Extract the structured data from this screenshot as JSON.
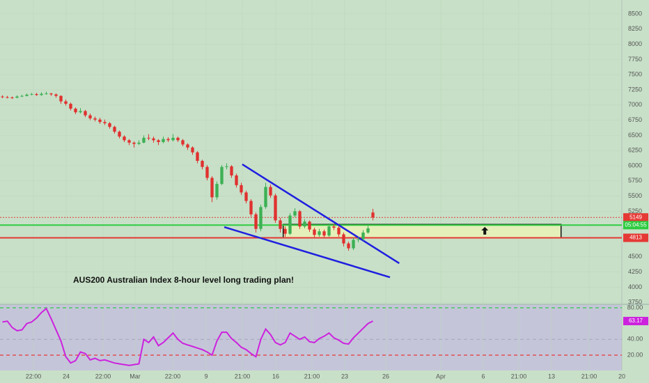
{
  "chart_data": [
    {
      "type": "candlestick",
      "annotation": "AUS200 Australian Index 8-hour level long trading plan!",
      "up_color": "#3cb054",
      "down_color": "#e0312f",
      "xlim": [
        -0.5,
        127.07
      ],
      "xticks": [
        {
          "value": 6.36,
          "label": "22:00"
        },
        {
          "value": 13.07,
          "label": "24"
        },
        {
          "value": 20.64,
          "label": "22:00"
        },
        {
          "value": 27.21,
          "label": "Mar"
        },
        {
          "value": 34.93,
          "label": "22:00"
        },
        {
          "value": 41.79,
          "label": "9"
        },
        {
          "value": 49.21,
          "label": "21:00"
        },
        {
          "value": 56.07,
          "label": "16"
        },
        {
          "value": 63.5,
          "label": "21:00"
        },
        {
          "value": 70.21,
          "label": "23"
        },
        {
          "value": 78.64,
          "label": "26"
        },
        {
          "value": 89.93,
          "label": "Apr"
        },
        {
          "value": 98.64,
          "label": "6"
        },
        {
          "value": 105.93,
          "label": "21:00"
        },
        {
          "value": 112.64,
          "label": "13"
        },
        {
          "value": 120.36,
          "label": "21:00"
        },
        {
          "value": 127.07,
          "label": "20"
        }
      ],
      "ylim": [
        3718,
        8729
      ],
      "yticks": [
        8500,
        8250,
        8000,
        7750,
        7500,
        7250,
        7000,
        6750,
        6500,
        6250,
        6000,
        5750,
        5500,
        5250,
        4500,
        4250,
        4000,
        3750
      ],
      "candles": [
        [
          7140,
          7160,
          7110,
          7130
        ],
        [
          7130,
          7150,
          7110,
          7125
        ],
        [
          7125,
          7140,
          7100,
          7120
        ],
        [
          7120,
          7160,
          7110,
          7140
        ],
        [
          7140,
          7170,
          7130,
          7150
        ],
        [
          7150,
          7190,
          7140,
          7170
        ],
        [
          7170,
          7200,
          7160,
          7180
        ],
        [
          7180,
          7200,
          7150,
          7165
        ],
        [
          7165,
          7210,
          7150,
          7185
        ],
        [
          7185,
          7220,
          7170,
          7190
        ],
        [
          7190,
          7200,
          7150,
          7175
        ],
        [
          7175,
          7190,
          7120,
          7150
        ],
        [
          7150,
          7160,
          7020,
          7060
        ],
        [
          7060,
          7090,
          6990,
          7020
        ],
        [
          7020,
          7040,
          6910,
          6940
        ],
        [
          6940,
          6960,
          6850,
          6880
        ],
        [
          6880,
          6950,
          6860,
          6900
        ],
        [
          6900,
          6920,
          6800,
          6830
        ],
        [
          6830,
          6860,
          6750,
          6780
        ],
        [
          6780,
          6810,
          6730,
          6760
        ],
        [
          6760,
          6790,
          6690,
          6720
        ],
        [
          6720,
          6760,
          6670,
          6700
        ],
        [
          6700,
          6720,
          6610,
          6640
        ],
        [
          6640,
          6660,
          6530,
          6560
        ],
        [
          6560,
          6580,
          6450,
          6480
        ],
        [
          6480,
          6500,
          6390,
          6420
        ],
        [
          6420,
          6440,
          6340,
          6380
        ],
        [
          6380,
          6400,
          6300,
          6360
        ],
        [
          6360,
          6420,
          6340,
          6380
        ],
        [
          6380,
          6500,
          6370,
          6460
        ],
        [
          6460,
          6520,
          6420,
          6450
        ],
        [
          6450,
          6480,
          6380,
          6420
        ],
        [
          6420,
          6440,
          6340,
          6390
        ],
        [
          6390,
          6480,
          6370,
          6440
        ],
        [
          6440,
          6470,
          6390,
          6420
        ],
        [
          6420,
          6520,
          6400,
          6460
        ],
        [
          6460,
          6480,
          6390,
          6420
        ],
        [
          6420,
          6440,
          6320,
          6350
        ],
        [
          6350,
          6370,
          6260,
          6300
        ],
        [
          6300,
          6320,
          6180,
          6220
        ],
        [
          6220,
          6240,
          6040,
          6080
        ],
        [
          6080,
          6100,
          5940,
          5980
        ],
        [
          5980,
          6010,
          5760,
          5800
        ],
        [
          5800,
          5830,
          5400,
          5480
        ],
        [
          5480,
          5740,
          5440,
          5700
        ],
        [
          5700,
          6010,
          5680,
          5980
        ],
        [
          5980,
          6040,
          5940,
          5990
        ],
        [
          5990,
          6010,
          5800,
          5840
        ],
        [
          5840,
          5870,
          5640,
          5680
        ],
        [
          5680,
          5720,
          5520,
          5560
        ],
        [
          5560,
          5590,
          5380,
          5420
        ],
        [
          5420,
          5450,
          5160,
          5200
        ],
        [
          5200,
          5230,
          4900,
          4960
        ],
        [
          4960,
          5360,
          4920,
          5320
        ],
        [
          5320,
          5720,
          5290,
          5650
        ],
        [
          5650,
          5690,
          5470,
          5510
        ],
        [
          5510,
          5540,
          5060,
          5100
        ],
        [
          5100,
          5140,
          4900,
          4960
        ],
        [
          4960,
          5000,
          4830,
          4880
        ],
        [
          4880,
          5220,
          4860,
          5180
        ],
        [
          5180,
          5300,
          5150,
          5250
        ],
        [
          5250,
          5270,
          4960,
          5000
        ],
        [
          5000,
          5120,
          4970,
          5080
        ],
        [
          5080,
          5100,
          4910,
          4950
        ],
        [
          4950,
          4980,
          4820,
          4860
        ],
        [
          4860,
          4960,
          4830,
          4920
        ],
        [
          4920,
          4950,
          4810,
          4850
        ],
        [
          4850,
          5050,
          4830,
          5000
        ],
        [
          5000,
          5040,
          4940,
          4980
        ],
        [
          4980,
          5010,
          4830,
          4870
        ],
        [
          4870,
          4900,
          4670,
          4720
        ],
        [
          4720,
          4750,
          4600,
          4640
        ],
        [
          4640,
          4820,
          4610,
          4780
        ],
        [
          4780,
          4830,
          4740,
          4790
        ],
        [
          4790,
          4940,
          4770,
          4900
        ],
        [
          4900,
          5010,
          4880,
          4970
        ],
        [
          5230,
          5290,
          5100,
          5149
        ]
      ],
      "levels": [
        {
          "value": 5149,
          "label": "5149",
          "color": "#e53935",
          "style": "dotted"
        },
        {
          "value": 5022,
          "color": "#2ecc40",
          "style": "solid"
        },
        {
          "value": 4813,
          "label": "4813",
          "color": "#e53935",
          "style": "solid"
        }
      ],
      "countdown": "05:04:55",
      "zone": {
        "x": [
          57.6,
          114.6
        ],
        "y": [
          4813,
          5033
        ],
        "fill": "#e4efb9"
      },
      "trendlines": [
        {
          "points": [
            [
              49.2,
              6023
            ],
            [
              81.4,
              4394
            ]
          ],
          "color": "#1f1fe0"
        },
        {
          "points": [
            [
              45.5,
              4990
            ],
            [
              79.5,
              4163
            ]
          ],
          "color": "#1f1fe0"
        }
      ]
    },
    {
      "type": "line",
      "color": "#cc22dd",
      "ylim": [
        0.6,
        83.5
      ],
      "yticks": [
        {
          "value": 80,
          "label": "80.00",
          "color": "#2ecc40"
        },
        {
          "value": 40,
          "label": "40.00",
          "color": "#a8a8c0"
        },
        {
          "value": 20,
          "label": "20.00",
          "color": "#e53935"
        }
      ],
      "values": [
        62,
        63,
        55,
        51,
        52,
        60,
        62,
        67,
        74,
        79,
        66,
        52,
        38,
        18,
        10,
        13,
        24,
        22,
        14,
        16,
        13,
        14,
        12,
        10,
        9,
        8,
        7,
        8,
        9,
        40,
        36,
        43,
        32,
        36,
        42,
        48,
        40,
        35,
        33,
        31,
        29,
        27,
        24,
        20,
        38,
        49,
        49,
        41,
        36,
        30,
        27,
        22,
        18,
        40,
        53,
        46,
        36,
        33,
        36,
        48,
        44,
        40,
        43,
        37,
        36,
        41,
        44,
        48,
        42,
        39,
        35,
        34,
        42,
        48,
        54,
        60,
        63.17
      ]
    }
  ]
}
